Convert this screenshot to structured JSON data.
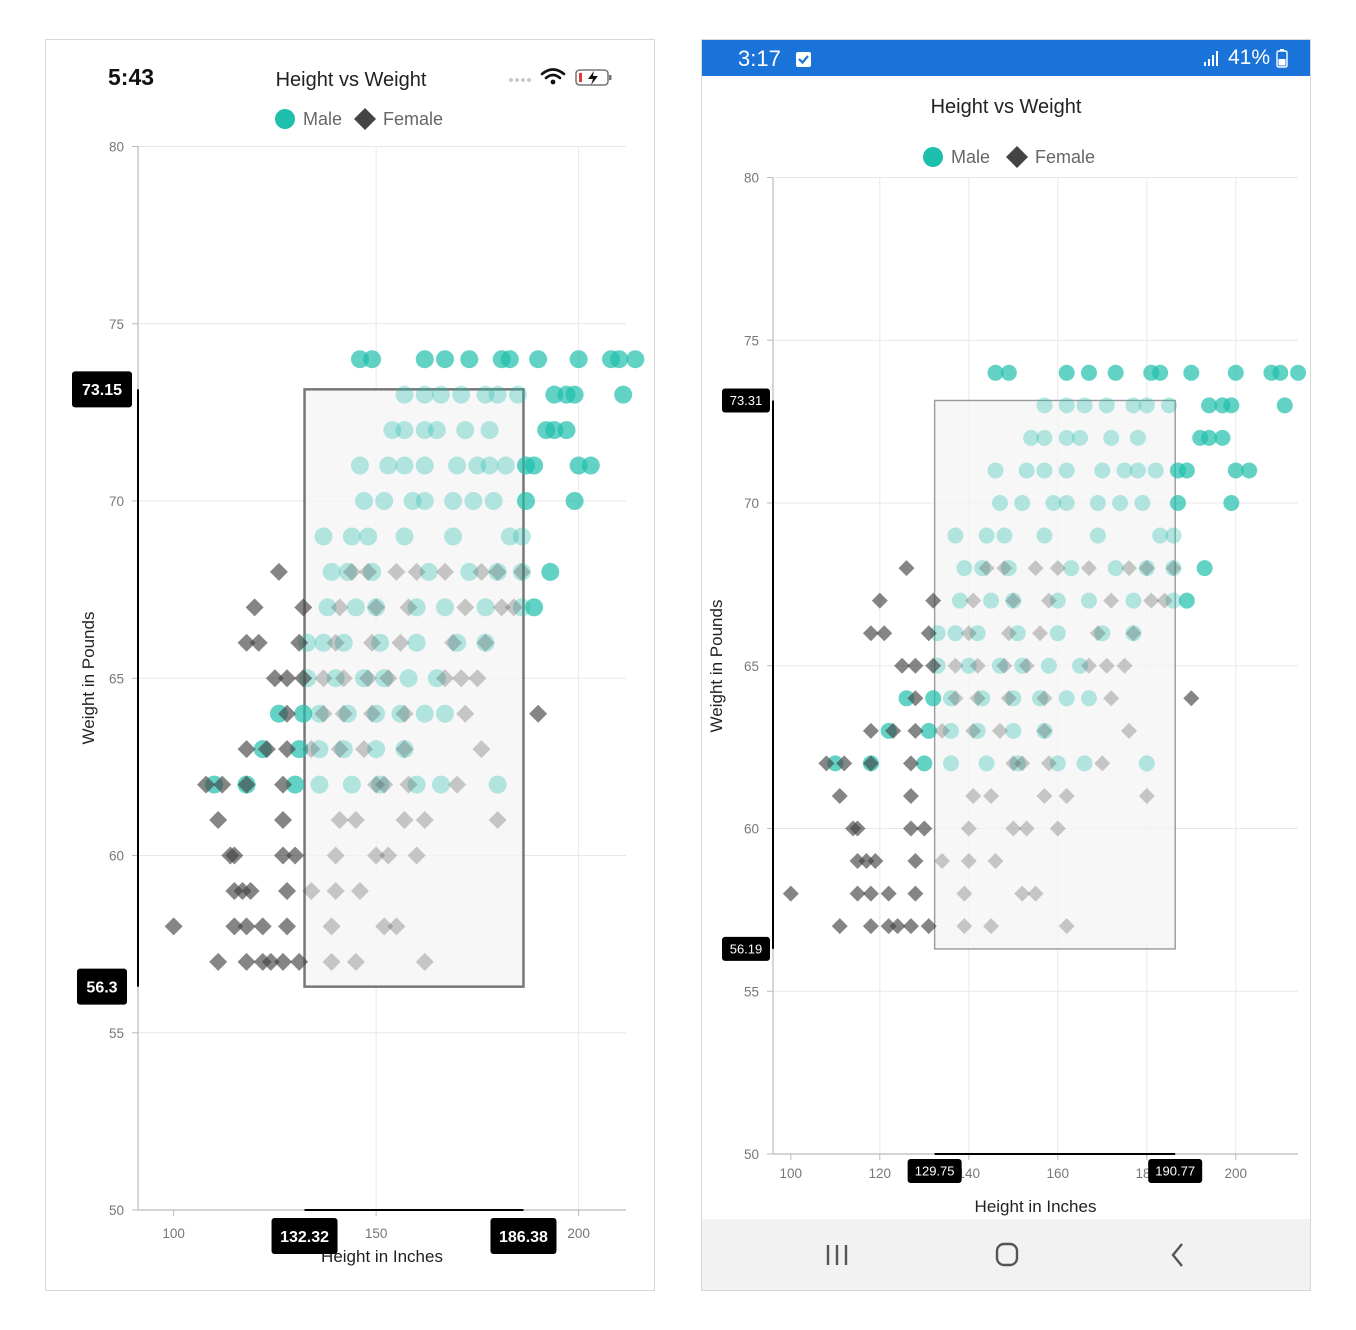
{
  "ios": {
    "status_time": "5:43",
    "chart": {
      "title": "Height vs Weight",
      "legend_male": "Male",
      "legend_female": "Female",
      "xlabel": "Height in Inches",
      "ylabel": "Weight in Pounds",
      "x_ticks": [
        "100",
        "150",
        "200"
      ],
      "y_ticks": [
        "50",
        "55",
        "60",
        "65",
        "70",
        "75",
        "80"
      ],
      "tooltip_x1": "132.32",
      "tooltip_x2": "186.38",
      "tooltip_y1": "73.15",
      "tooltip_y2": "56.3"
    }
  },
  "android": {
    "status_time": "3:17",
    "battery": "41%",
    "chart": {
      "title": "Height vs Weight",
      "legend_male": "Male",
      "legend_female": "Female",
      "xlabel": "Height in Inches",
      "ylabel": "Weight in Pounds",
      "x_ticks": [
        "100",
        "120",
        "140",
        "160",
        "180",
        "200",
        "220"
      ],
      "y_ticks": [
        "50",
        "55",
        "60",
        "65",
        "70",
        "75",
        "80"
      ],
      "tooltip_x1": "129.75",
      "tooltip_x2": "190.77",
      "tooltip_y1": "73.31",
      "tooltip_y2": "56.19"
    }
  },
  "chart_data": [
    {
      "type": "scatter",
      "title": "Height vs Weight",
      "xlabel": "Height in Inches",
      "ylabel": "Weight in Pounds",
      "xlim": [
        96,
        216
      ],
      "ylim": [
        50,
        80
      ],
      "grid": true,
      "legend": "top",
      "colors": {
        "male": "#1fbfad",
        "female": "#444444"
      },
      "selection": {
        "x": [
          132.32,
          186.38
        ],
        "y": [
          56.3,
          73.15
        ]
      },
      "series": [
        {
          "name": "Male",
          "marker": "circle",
          "points": [
            [
              146,
              74
            ],
            [
              149,
              74
            ],
            [
              162,
              74
            ],
            [
              167,
              74
            ],
            [
              173,
              74
            ],
            [
              181,
              74
            ],
            [
              183,
              74
            ],
            [
              190,
              74
            ],
            [
              200,
              74
            ],
            [
              208,
              74
            ],
            [
              210,
              74
            ],
            [
              214,
              74
            ],
            [
              157,
              73
            ],
            [
              162,
              73
            ],
            [
              166,
              73
            ],
            [
              171,
              73
            ],
            [
              177,
              73
            ],
            [
              180,
              73
            ],
            [
              185,
              73
            ],
            [
              194,
              73
            ],
            [
              197,
              73
            ],
            [
              199,
              73
            ],
            [
              211,
              73
            ],
            [
              154,
              72
            ],
            [
              157,
              72
            ],
            [
              162,
              72
            ],
            [
              165,
              72
            ],
            [
              172,
              72
            ],
            [
              178,
              72
            ],
            [
              192,
              72
            ],
            [
              194,
              72
            ],
            [
              197,
              72
            ],
            [
              146,
              71
            ],
            [
              153,
              71
            ],
            [
              157,
              71
            ],
            [
              162,
              71
            ],
            [
              170,
              71
            ],
            [
              175,
              71
            ],
            [
              178,
              71
            ],
            [
              182,
              71
            ],
            [
              187,
              71
            ],
            [
              189,
              71
            ],
            [
              200,
              71
            ],
            [
              203,
              71
            ],
            [
              147,
              70
            ],
            [
              152,
              70
            ],
            [
              159,
              70
            ],
            [
              162,
              70
            ],
            [
              169,
              70
            ],
            [
              174,
              70
            ],
            [
              179,
              70
            ],
            [
              187,
              70
            ],
            [
              199,
              70
            ],
            [
              137,
              69
            ],
            [
              144,
              69
            ],
            [
              148,
              69
            ],
            [
              157,
              69
            ],
            [
              169,
              69
            ],
            [
              183,
              69
            ],
            [
              186,
              69
            ],
            [
              139,
              68
            ],
            [
              143,
              68
            ],
            [
              149,
              68
            ],
            [
              163,
              68
            ],
            [
              173,
              68
            ],
            [
              180,
              68
            ],
            [
              186,
              68
            ],
            [
              193,
              68
            ],
            [
              138,
              67
            ],
            [
              145,
              67
            ],
            [
              150,
              67
            ],
            [
              160,
              67
            ],
            [
              167,
              67
            ],
            [
              177,
              67
            ],
            [
              186,
              67
            ],
            [
              189,
              67
            ],
            [
              133,
              66
            ],
            [
              137,
              66
            ],
            [
              142,
              66
            ],
            [
              151,
              66
            ],
            [
              160,
              66
            ],
            [
              170,
              66
            ],
            [
              177,
              66
            ],
            [
              133,
              65
            ],
            [
              140,
              65
            ],
            [
              147,
              65
            ],
            [
              152,
              65
            ],
            [
              158,
              65
            ],
            [
              165,
              65
            ],
            [
              126,
              64
            ],
            [
              132,
              64
            ],
            [
              136,
              64
            ],
            [
              143,
              64
            ],
            [
              150,
              64
            ],
            [
              156,
              64
            ],
            [
              162,
              64
            ],
            [
              167,
              64
            ],
            [
              122,
              63
            ],
            [
              131,
              63
            ],
            [
              136,
              63
            ],
            [
              142,
              63
            ],
            [
              150,
              63
            ],
            [
              157,
              63
            ],
            [
              110,
              62
            ],
            [
              118,
              62
            ],
            [
              130,
              62
            ],
            [
              136,
              62
            ],
            [
              144,
              62
            ],
            [
              151,
              62
            ],
            [
              160,
              62
            ],
            [
              166,
              62
            ],
            [
              180,
              62
            ]
          ]
        },
        {
          "name": "Female",
          "marker": "diamond",
          "points": [
            [
              126,
              68
            ],
            [
              144,
              68
            ],
            [
              148,
              68
            ],
            [
              155,
              68
            ],
            [
              160,
              68
            ],
            [
              167,
              68
            ],
            [
              176,
              68
            ],
            [
              180,
              68
            ],
            [
              186,
              68
            ],
            [
              120,
              67
            ],
            [
              132,
              67
            ],
            [
              141,
              67
            ],
            [
              150,
              67
            ],
            [
              158,
              67
            ],
            [
              172,
              67
            ],
            [
              181,
              67
            ],
            [
              184,
              67
            ],
            [
              118,
              66
            ],
            [
              121,
              66
            ],
            [
              131,
              66
            ],
            [
              140,
              66
            ],
            [
              149,
              66
            ],
            [
              156,
              66
            ],
            [
              169,
              66
            ],
            [
              177,
              66
            ],
            [
              125,
              65
            ],
            [
              128,
              65
            ],
            [
              132,
              65
            ],
            [
              137,
              65
            ],
            [
              142,
              65
            ],
            [
              148,
              65
            ],
            [
              153,
              65
            ],
            [
              167,
              65
            ],
            [
              171,
              65
            ],
            [
              175,
              65
            ],
            [
              128,
              64
            ],
            [
              137,
              64
            ],
            [
              142,
              64
            ],
            [
              149,
              64
            ],
            [
              157,
              64
            ],
            [
              172,
              64
            ],
            [
              190,
              64
            ],
            [
              118,
              63
            ],
            [
              123,
              63
            ],
            [
              128,
              63
            ],
            [
              134,
              63
            ],
            [
              141,
              63
            ],
            [
              147,
              63
            ],
            [
              157,
              63
            ],
            [
              176,
              63
            ],
            [
              108,
              62
            ],
            [
              112,
              62
            ],
            [
              118,
              62
            ],
            [
              127,
              62
            ],
            [
              150,
              62
            ],
            [
              152,
              62
            ],
            [
              158,
              62
            ],
            [
              170,
              62
            ],
            [
              111,
              61
            ],
            [
              127,
              61
            ],
            [
              141,
              61
            ],
            [
              145,
              61
            ],
            [
              157,
              61
            ],
            [
              162,
              61
            ],
            [
              180,
              61
            ],
            [
              114,
              60
            ],
            [
              115,
              60
            ],
            [
              127,
              60
            ],
            [
              130,
              60
            ],
            [
              140,
              60
            ],
            [
              150,
              60
            ],
            [
              153,
              60
            ],
            [
              160,
              60
            ],
            [
              115,
              59
            ],
            [
              117,
              59
            ],
            [
              119,
              59
            ],
            [
              128,
              59
            ],
            [
              134,
              59
            ],
            [
              140,
              59
            ],
            [
              146,
              59
            ],
            [
              100,
              58
            ],
            [
              115,
              58
            ],
            [
              118,
              58
            ],
            [
              122,
              58
            ],
            [
              128,
              58
            ],
            [
              139,
              58
            ],
            [
              152,
              58
            ],
            [
              155,
              58
            ],
            [
              111,
              57
            ],
            [
              118,
              57
            ],
            [
              122,
              57
            ],
            [
              124,
              57
            ],
            [
              127,
              57
            ],
            [
              131,
              57
            ],
            [
              139,
              57
            ],
            [
              145,
              57
            ],
            [
              162,
              57
            ]
          ]
        }
      ]
    }
  ]
}
